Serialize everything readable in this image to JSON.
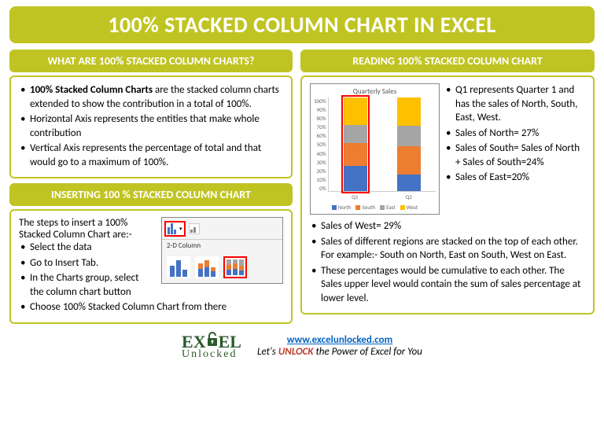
{
  "title": "100% STACKED COLUMN CHART IN EXCEL",
  "left": {
    "header1": "WHAT ARE 100% STACKED COLUMN CHARTS?",
    "points1": {
      "p0a": "100% Stacked Column Charts",
      "p0b": " are the stacked column charts extended to show the contribution in a total of 100%.",
      "p1": "Horizontal Axis represents the entities that make whole contribution",
      "p2": "Vertical Axis represents the percentage of total and that would go to a maximum of 100%."
    },
    "header2": "INSERTING 100 % STACKED COLUMN CHART",
    "insert": {
      "intro": "The steps to insert a 100% Stacked Column Chart are:-",
      "s0": "Select the data",
      "s1": "Go to Insert Tab.",
      "s2": "In the Charts group, select the column chart button",
      "s3": "Choose 100% Stacked Column Chart from there"
    },
    "ribbon_label": "2-D Column"
  },
  "right": {
    "header": "READING 100% STACKED COLUMN CHART",
    "chart": {
      "title": "Quarterly Sales",
      "y_ticks": [
        "100%",
        "90%",
        "80%",
        "70%",
        "60%",
        "50%",
        "40%",
        "30%",
        "20%",
        "10%",
        "0%"
      ],
      "categories": [
        "Q1",
        "Q2"
      ],
      "series": [
        {
          "name": "North",
          "color": "#4472c4",
          "values": [
            27,
            18
          ]
        },
        {
          "name": "South",
          "color": "#ed7d31",
          "values": [
            24,
            30
          ]
        },
        {
          "name": "East",
          "color": "#a5a5a5",
          "values": [
            20,
            22
          ]
        },
        {
          "name": "West",
          "color": "#ffc000",
          "values": [
            29,
            30
          ]
        }
      ],
      "highlight_index": 0
    },
    "side_points": {
      "p0": "Q1 represents Quarter 1 and has the sales of North, South, East, West.",
      "p1": "Sales of North= 27%",
      "p2": "Sales of South= Sales of North + Sales of South=24%",
      "p3": "Sales of East=20%"
    },
    "below_points": {
      "p0": "Sales of West= 29%",
      "p1": "Sales of different regions are stacked on the top of each other. For example:-  South on North, East on South, West on East.",
      "p2": "These percentages would be cumulative to each other. The Sales upper level would contain the sum of sales percentage at lower level."
    }
  },
  "footer": {
    "logo_top": "EXCEL",
    "logo_bottom": "Unlocked",
    "url": "www.excelunlocked.com",
    "tag_pre": "Let's ",
    "tag_em": "UNLOCK",
    "tag_post": " the Power of Excel for You"
  },
  "colors": {
    "accent": "#c0c422",
    "north": "#4472c4",
    "south": "#ed7d31",
    "east": "#a5a5a5",
    "west": "#ffc000",
    "red": "#ff0000"
  }
}
